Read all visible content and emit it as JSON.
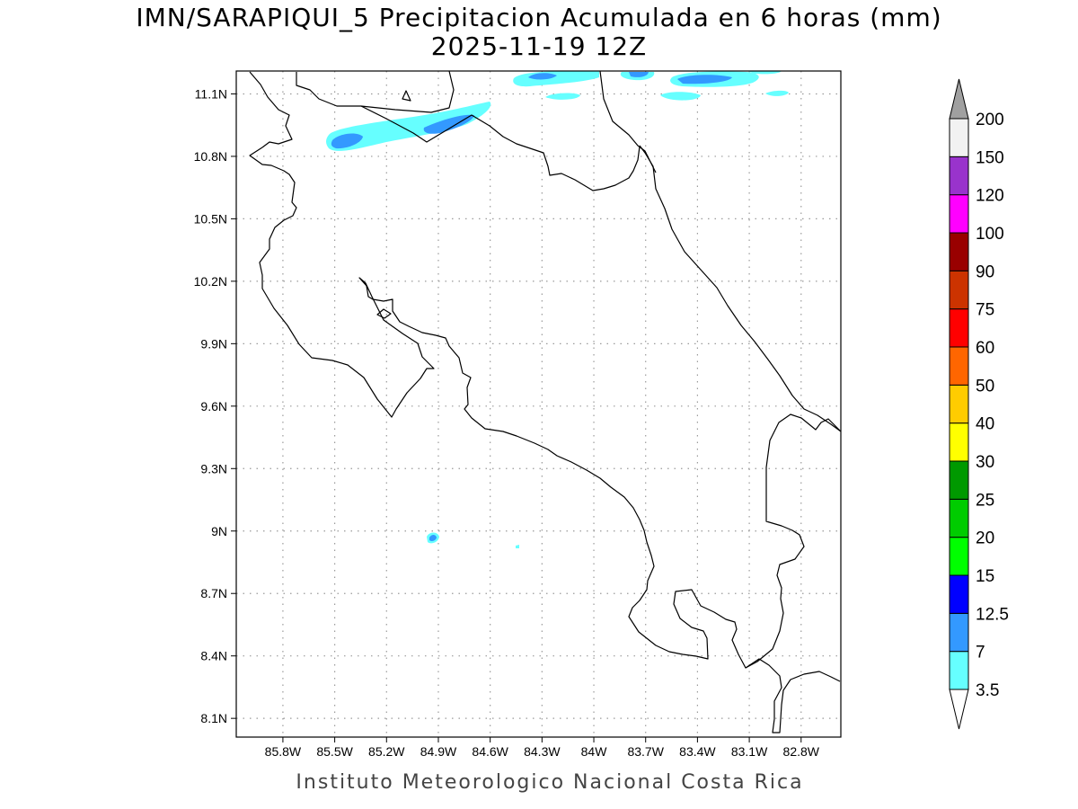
{
  "title": {
    "line1": "IMN/SARAPIQUI_5 Precipitacion Acumulada en 6 horas (mm)",
    "line2": "2025-11-19 12Z"
  },
  "footer": "Instituto Meteorologico Nacional Costa Rica",
  "map": {
    "lon_range": [
      -86.07,
      -82.57
    ],
    "lat_range": [
      8.01,
      11.21
    ],
    "lon_ticks": [
      "85.8W",
      "85.5W",
      "85.2W",
      "84.9W",
      "84.6W",
      "84.3W",
      "84W",
      "83.7W",
      "83.4W",
      "83.1W",
      "82.8W"
    ],
    "lon_tick_values": [
      -85.8,
      -85.5,
      -85.2,
      -84.9,
      -84.6,
      -84.3,
      -84.0,
      -83.7,
      -83.4,
      -83.1,
      -82.8
    ],
    "lat_ticks": [
      "11.1N",
      "10.8N",
      "10.5N",
      "10.2N",
      "9.9N",
      "9.6N",
      "9.3N",
      "9N",
      "8.7N",
      "8.4N",
      "8.1N"
    ],
    "lat_tick_values": [
      11.1,
      10.8,
      10.5,
      10.2,
      9.9,
      9.6,
      9.3,
      9.0,
      8.7,
      8.4,
      8.1
    ],
    "grid": "dotted"
  },
  "colorbar": {
    "labels": [
      "3.5",
      "7",
      "12.5",
      "15",
      "20",
      "25",
      "30",
      "40",
      "50",
      "60",
      "75",
      "90",
      "100",
      "120",
      "150",
      "200"
    ],
    "colors": [
      "#66ffff",
      "#3399ff",
      "#0000ff",
      "#00ff00",
      "#00cc00",
      "#009900",
      "#ffff00",
      "#ffcc00",
      "#ff6600",
      "#ff0000",
      "#cc3300",
      "#990000",
      "#ff00ff",
      "#9933cc",
      "#f2f2f2"
    ],
    "over_color": "#a0a0a0",
    "under_color": "#ffffff"
  }
}
